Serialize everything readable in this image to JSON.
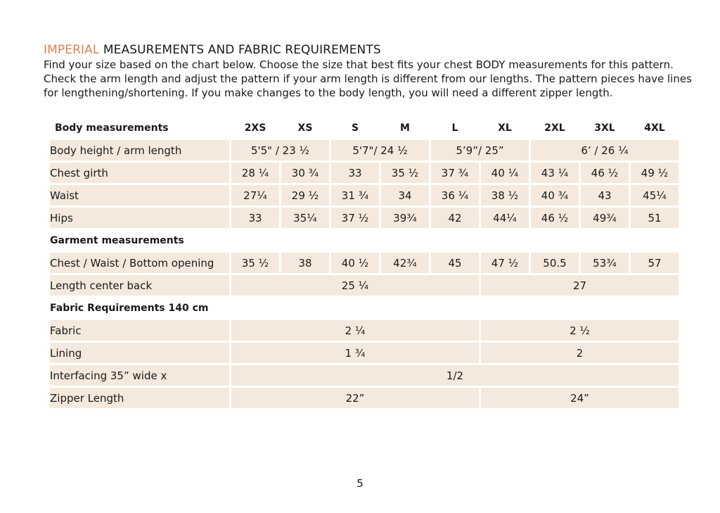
{
  "heading": {
    "accent": "IMPERIAL",
    "rest": " MEASUREMENTS AND FABRIC REQUIREMENTS"
  },
  "intro": [
    "Find your size based on the chart below. Choose the size that best fits your chest BODY measurements for this pattern.",
    "Check the arm length and adjust the pattern if your arm length is different from our lengths. The pattern pieces have lines",
    "for lengthening/shortening. If you make changes to the body length, you will need a different zipper length."
  ],
  "table": {
    "body_header": "Body measurements",
    "sizes": [
      "2XS",
      "XS",
      "S",
      "M",
      "L",
      "XL",
      "2XL",
      "3XL",
      "4XL"
    ],
    "body_height": {
      "label": "Body height / arm length",
      "groups": [
        "5'5\" / 23 ½",
        "5'7\"/ 24 ½",
        "5’9”/ 25”",
        "6’ / 26 ¼"
      ]
    },
    "chest": {
      "label": "Chest girth",
      "values": [
        "28 ¼",
        "30 ¾",
        "33",
        "35 ½",
        "37 ¾",
        "40 ¼",
        "43 ¼",
        "46 ½",
        "49 ½"
      ]
    },
    "waist": {
      "label": "Waist",
      "values": [
        "27¼",
        "29 ½",
        "31 ¾",
        "34",
        "36 ¼",
        "38 ½",
        "40 ¾",
        "43",
        "45¼"
      ]
    },
    "hips": {
      "label": "Hips",
      "values": [
        "33",
        "35¼",
        "37 ½",
        "39¾",
        "42",
        "44¼",
        "46 ½",
        "49¾",
        "51"
      ]
    },
    "garment_header": "Garment measurements",
    "garment_chest": {
      "label": "Chest / Waist / Bottom opening",
      "values": [
        "35 ½",
        "38",
        "40 ½",
        "42¾",
        "45",
        "47 ½",
        "50.5",
        "53¾",
        "57"
      ]
    },
    "length_back": {
      "label": "Length center back",
      "values": [
        "25 ¼",
        "27"
      ]
    },
    "fabric_header": "Fabric Requirements 140 cm",
    "fabric": {
      "label": "Fabric",
      "values": [
        "2 ¼",
        "2 ½"
      ]
    },
    "lining": {
      "label": "Lining",
      "values": [
        "1 ¾",
        "2"
      ]
    },
    "interfacing": {
      "label": "Interfacing  35” wide x",
      "value": "1/2"
    },
    "zipper": {
      "label": "Zipper Length",
      "values": [
        "22”",
        "24”"
      ]
    }
  },
  "page_number": "5"
}
